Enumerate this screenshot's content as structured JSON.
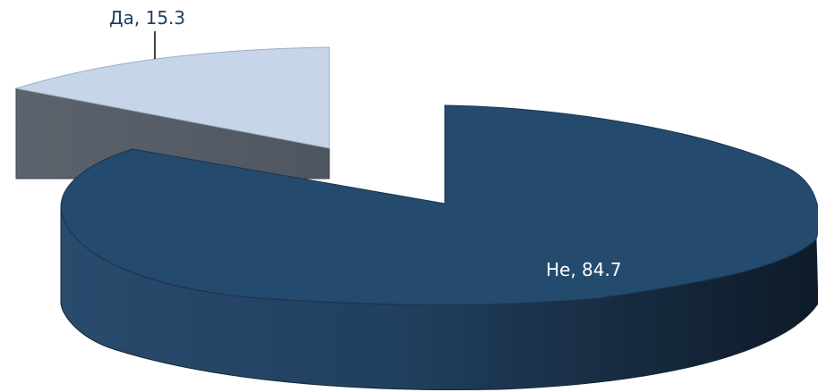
{
  "chart_data": {
    "type": "pie",
    "title": "",
    "slices": [
      {
        "label": "Да",
        "value": 15.3,
        "display": "Да, 15.3",
        "color": "#C7D5E8",
        "side_color": "#575E68"
      },
      {
        "label": "Не",
        "value": 84.7,
        "display": "Не, 84.7",
        "color": "#244A6E",
        "side_color": "#1E3A58"
      }
    ],
    "label_colors": {
      "Да": "#1F3F60",
      "Не": "#FFFFFF"
    },
    "exploded": true,
    "three_d": true,
    "legend": "none"
  }
}
